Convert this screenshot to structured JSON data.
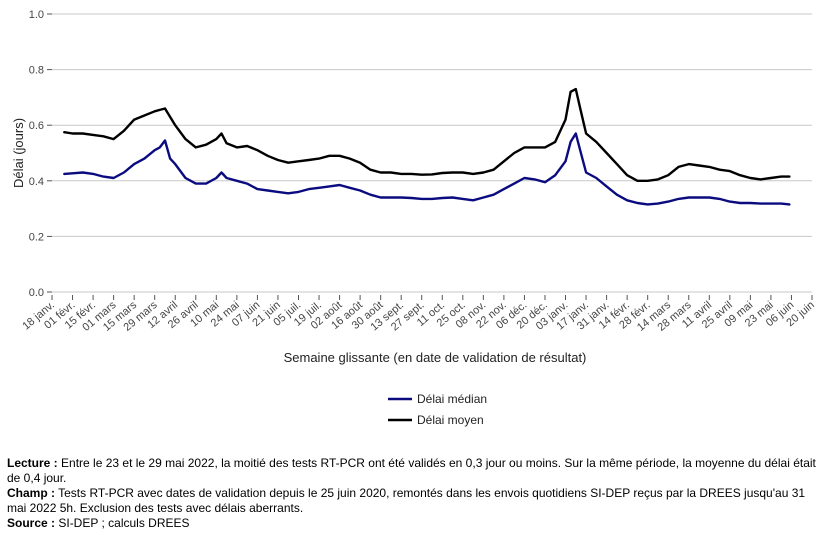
{
  "chart_data": {
    "type": "line",
    "xlabel": "Semaine glissante (en date de validation de résultat)",
    "ylabel": "Délai (jours)",
    "ylim": [
      0.0,
      1.0
    ],
    "yticks": [
      "0.0",
      "0.2",
      "0.4",
      "0.6",
      "0.8",
      "1.0"
    ],
    "grid": true,
    "legend_position": "bottom",
    "x_tick_labels": [
      "18 janv.",
      "01 févr.",
      "15 févr.",
      "01 mars",
      "15 mars",
      "29 mars",
      "12 avril",
      "26 avril",
      "10 mai",
      "24 mai",
      "07 juin",
      "21 juin",
      "05 juil.",
      "19 juil.",
      "02 août",
      "16 août",
      "30 août",
      "13 sept.",
      "27 sept.",
      "11 oct.",
      "25 oct.",
      "08 nov.",
      "22 nov.",
      "06 déc.",
      "20 déc.",
      "03 janv.",
      "17 janv.",
      "31 janv.",
      "14 févr.",
      "28 févr.",
      "14 mars",
      "28 mars",
      "11 avril",
      "25 avril",
      "09 mai",
      "23 mai",
      "06 juin",
      "20 juin"
    ],
    "x_weeks": [
      0,
      2,
      4,
      6,
      8,
      10,
      12,
      14,
      16,
      18,
      20,
      22,
      24,
      26,
      28,
      30,
      32,
      34,
      36,
      38,
      40,
      42,
      44,
      46,
      48,
      50,
      52,
      54,
      56,
      58,
      60,
      62,
      64,
      66,
      68,
      70,
      72,
      74
    ],
    "series": [
      {
        "name": "Délai médian",
        "color": "#0b0b80",
        "x": [
          1.2,
          2,
          3,
          4,
          5,
          6,
          7,
          8,
          9,
          10,
          10.5,
          11,
          11.5,
          12,
          13,
          14,
          15,
          16,
          16.5,
          17,
          18,
          19,
          20,
          21,
          22,
          23,
          24,
          25,
          26,
          27,
          28,
          29,
          30,
          31,
          32,
          33,
          34,
          35,
          36,
          37,
          38,
          39,
          40,
          41,
          42,
          43,
          44,
          45,
          46,
          47,
          48,
          49,
          50,
          50.5,
          51,
          51.5,
          52,
          53,
          54,
          55,
          56,
          57,
          58,
          59,
          60,
          61,
          62,
          63,
          64,
          65,
          66,
          67,
          68,
          69,
          70,
          71,
          71.8
        ],
        "y": [
          0.425,
          0.427,
          0.43,
          0.425,
          0.415,
          0.41,
          0.43,
          0.46,
          0.48,
          0.51,
          0.52,
          0.545,
          0.48,
          0.46,
          0.41,
          0.39,
          0.39,
          0.41,
          0.43,
          0.41,
          0.4,
          0.39,
          0.37,
          0.365,
          0.36,
          0.355,
          0.36,
          0.37,
          0.375,
          0.38,
          0.385,
          0.375,
          0.365,
          0.35,
          0.34,
          0.34,
          0.34,
          0.338,
          0.335,
          0.335,
          0.338,
          0.34,
          0.335,
          0.33,
          0.34,
          0.35,
          0.37,
          0.39,
          0.41,
          0.405,
          0.395,
          0.42,
          0.47,
          0.54,
          0.57,
          0.5,
          0.43,
          0.41,
          0.38,
          0.35,
          0.33,
          0.32,
          0.315,
          0.318,
          0.325,
          0.335,
          0.34,
          0.34,
          0.34,
          0.335,
          0.325,
          0.32,
          0.32,
          0.318,
          0.318,
          0.318,
          0.315
        ]
      },
      {
        "name": "Délai moyen",
        "color": "#000000",
        "x": [
          1.2,
          2,
          3,
          4,
          5,
          6,
          7,
          8,
          9,
          10,
          10.5,
          11,
          11.5,
          12,
          13,
          14,
          15,
          16,
          16.5,
          17,
          18,
          19,
          20,
          21,
          22,
          23,
          24,
          25,
          26,
          27,
          28,
          29,
          30,
          31,
          32,
          33,
          34,
          35,
          36,
          37,
          38,
          39,
          40,
          41,
          42,
          43,
          44,
          45,
          46,
          47,
          48,
          49,
          50,
          50.5,
          51,
          51.5,
          52,
          53,
          54,
          55,
          56,
          57,
          58,
          59,
          60,
          61,
          62,
          63,
          64,
          65,
          66,
          67,
          68,
          69,
          70,
          71,
          71.8
        ],
        "y": [
          0.575,
          0.57,
          0.57,
          0.565,
          0.56,
          0.55,
          0.58,
          0.62,
          0.635,
          0.65,
          0.655,
          0.66,
          0.63,
          0.6,
          0.55,
          0.52,
          0.53,
          0.55,
          0.57,
          0.535,
          0.52,
          0.525,
          0.51,
          0.49,
          0.475,
          0.465,
          0.47,
          0.475,
          0.48,
          0.49,
          0.49,
          0.48,
          0.465,
          0.44,
          0.43,
          0.43,
          0.425,
          0.425,
          0.422,
          0.423,
          0.428,
          0.43,
          0.43,
          0.425,
          0.43,
          0.44,
          0.47,
          0.5,
          0.52,
          0.52,
          0.52,
          0.54,
          0.62,
          0.72,
          0.73,
          0.65,
          0.57,
          0.54,
          0.5,
          0.46,
          0.42,
          0.4,
          0.4,
          0.405,
          0.42,
          0.45,
          0.46,
          0.455,
          0.45,
          0.44,
          0.435,
          0.42,
          0.41,
          0.405,
          0.41,
          0.415,
          0.415
        ]
      }
    ]
  },
  "notes": {
    "lecture_label": "Lecture :",
    "lecture_text": " Entre le 23 et le 29 mai 2022, la moitié des tests RT-PCR ont été validés en 0,3 jour ou moins. Sur la même période, la moyenne du délai était de 0,4 jour.",
    "champ_label": "Champ :",
    "champ_text": " Tests RT-PCR avec dates de validation depuis le 25 juin 2020, remontés dans les envois quotidiens SI-DEP reçus par la DREES jusqu'au 31 mai 2022 5h. Exclusion des tests avec délais aberrants.",
    "source_label": "Source :",
    "source_text": " SI-DEP ; calculs DREES"
  }
}
